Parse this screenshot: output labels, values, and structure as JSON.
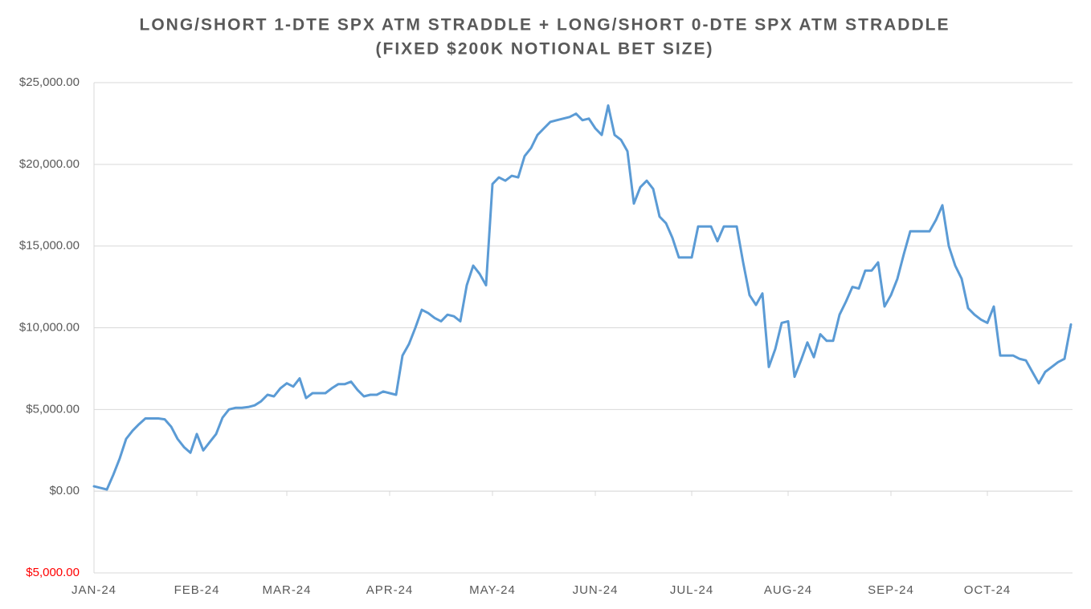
{
  "chart_data": {
    "type": "line",
    "title": "LONG/SHORT 1-DTE SPX ATM STRADDLE + LONG/SHORT 0-DTE SPX ATM STRADDLE",
    "subtitle": "(FIXED $200K NOTIONAL BET SIZE)",
    "categories": [
      "JAN-24",
      null,
      null,
      null,
      null,
      null,
      null,
      null,
      null,
      null,
      null,
      null,
      null,
      null,
      null,
      null,
      "FEB-24",
      null,
      null,
      null,
      null,
      null,
      null,
      null,
      null,
      null,
      null,
      null,
      null,
      null,
      "MAR-24",
      null,
      null,
      null,
      null,
      null,
      null,
      null,
      null,
      null,
      null,
      null,
      null,
      null,
      null,
      null,
      "APR-24",
      null,
      null,
      null,
      null,
      null,
      null,
      null,
      null,
      null,
      null,
      null,
      null,
      null,
      null,
      null,
      "MAY-24",
      null,
      null,
      null,
      null,
      null,
      null,
      null,
      null,
      null,
      null,
      null,
      null,
      null,
      null,
      null,
      "JUN-24",
      null,
      null,
      null,
      null,
      null,
      null,
      null,
      null,
      null,
      null,
      null,
      null,
      null,
      null,
      "JUL-24",
      null,
      null,
      null,
      null,
      null,
      null,
      null,
      null,
      null,
      null,
      null,
      null,
      null,
      null,
      "AUG-24",
      null,
      null,
      null,
      null,
      null,
      null,
      null,
      null,
      null,
      null,
      null,
      null,
      null,
      null,
      null,
      "SEP-24",
      null,
      null,
      null,
      null,
      null,
      null,
      null,
      null,
      null,
      null,
      null,
      null,
      null,
      null,
      "OCT-24",
      null,
      null,
      null,
      null,
      null,
      null,
      null,
      null,
      null,
      null,
      null,
      null,
      null
    ],
    "series": [
      {
        "color": "#5b9bd5",
        "values": [
          300,
          200,
          100,
          1000,
          2000,
          3200,
          3700,
          4100,
          4450,
          4450,
          4450,
          4400,
          3950,
          3200,
          2700,
          2350,
          3500,
          2500,
          3000,
          3500,
          4500,
          5000,
          5100,
          5100,
          5150,
          5250,
          5500,
          5900,
          5800,
          6300,
          6600,
          6400,
          6900,
          5700,
          6000,
          6000,
          6000,
          6300,
          6550,
          6550,
          6700,
          6200,
          5800,
          5900,
          5900,
          6100,
          6000,
          5900,
          8300,
          9000,
          10000,
          11100,
          10900,
          10600,
          10400,
          10800,
          10700,
          10400,
          12600,
          13800,
          13300,
          12600,
          18800,
          19200,
          19000,
          19300,
          19200,
          20500,
          21000,
          21800,
          22200,
          22600,
          22700,
          22800,
          22900,
          23100,
          22700,
          22800,
          22200,
          21800,
          23600,
          21800,
          21500,
          20800,
          17600,
          18600,
          19000,
          18500,
          16800,
          16400,
          15500,
          14300,
          14300,
          14300,
          16200,
          16200,
          16200,
          15300,
          16200,
          16200,
          16200,
          14000,
          12000,
          11400,
          12100,
          7600,
          8700,
          10300,
          10400,
          7000,
          8000,
          9100,
          8200,
          9600,
          9200,
          9200,
          10800,
          11600,
          12500,
          12400,
          13500,
          13500,
          14000,
          11300,
          12000,
          13000,
          14500,
          15900,
          15900,
          15900,
          15900,
          16600,
          17500,
          15000,
          13800,
          13000,
          11200,
          10800,
          10500,
          10300,
          11300,
          8300,
          8300,
          8300,
          8100,
          8000,
          7300,
          6600,
          7300,
          7600,
          7900,
          8100,
          10200
        ]
      }
    ],
    "ylim": [
      -5000,
      25000
    ],
    "yticks": [
      {
        "value": -5000,
        "label": "$5,000.00"
      },
      {
        "value": 0,
        "label": "$0.00"
      },
      {
        "value": 5000,
        "label": "$5,000.00"
      },
      {
        "value": 10000,
        "label": "$10,000.00"
      },
      {
        "value": 15000,
        "label": "$15,000.00"
      },
      {
        "value": 20000,
        "label": "$20,000.00"
      },
      {
        "value": 25000,
        "label": "$25,000.00"
      }
    ],
    "negative_label_color": "#ff0000",
    "grid": true
  }
}
